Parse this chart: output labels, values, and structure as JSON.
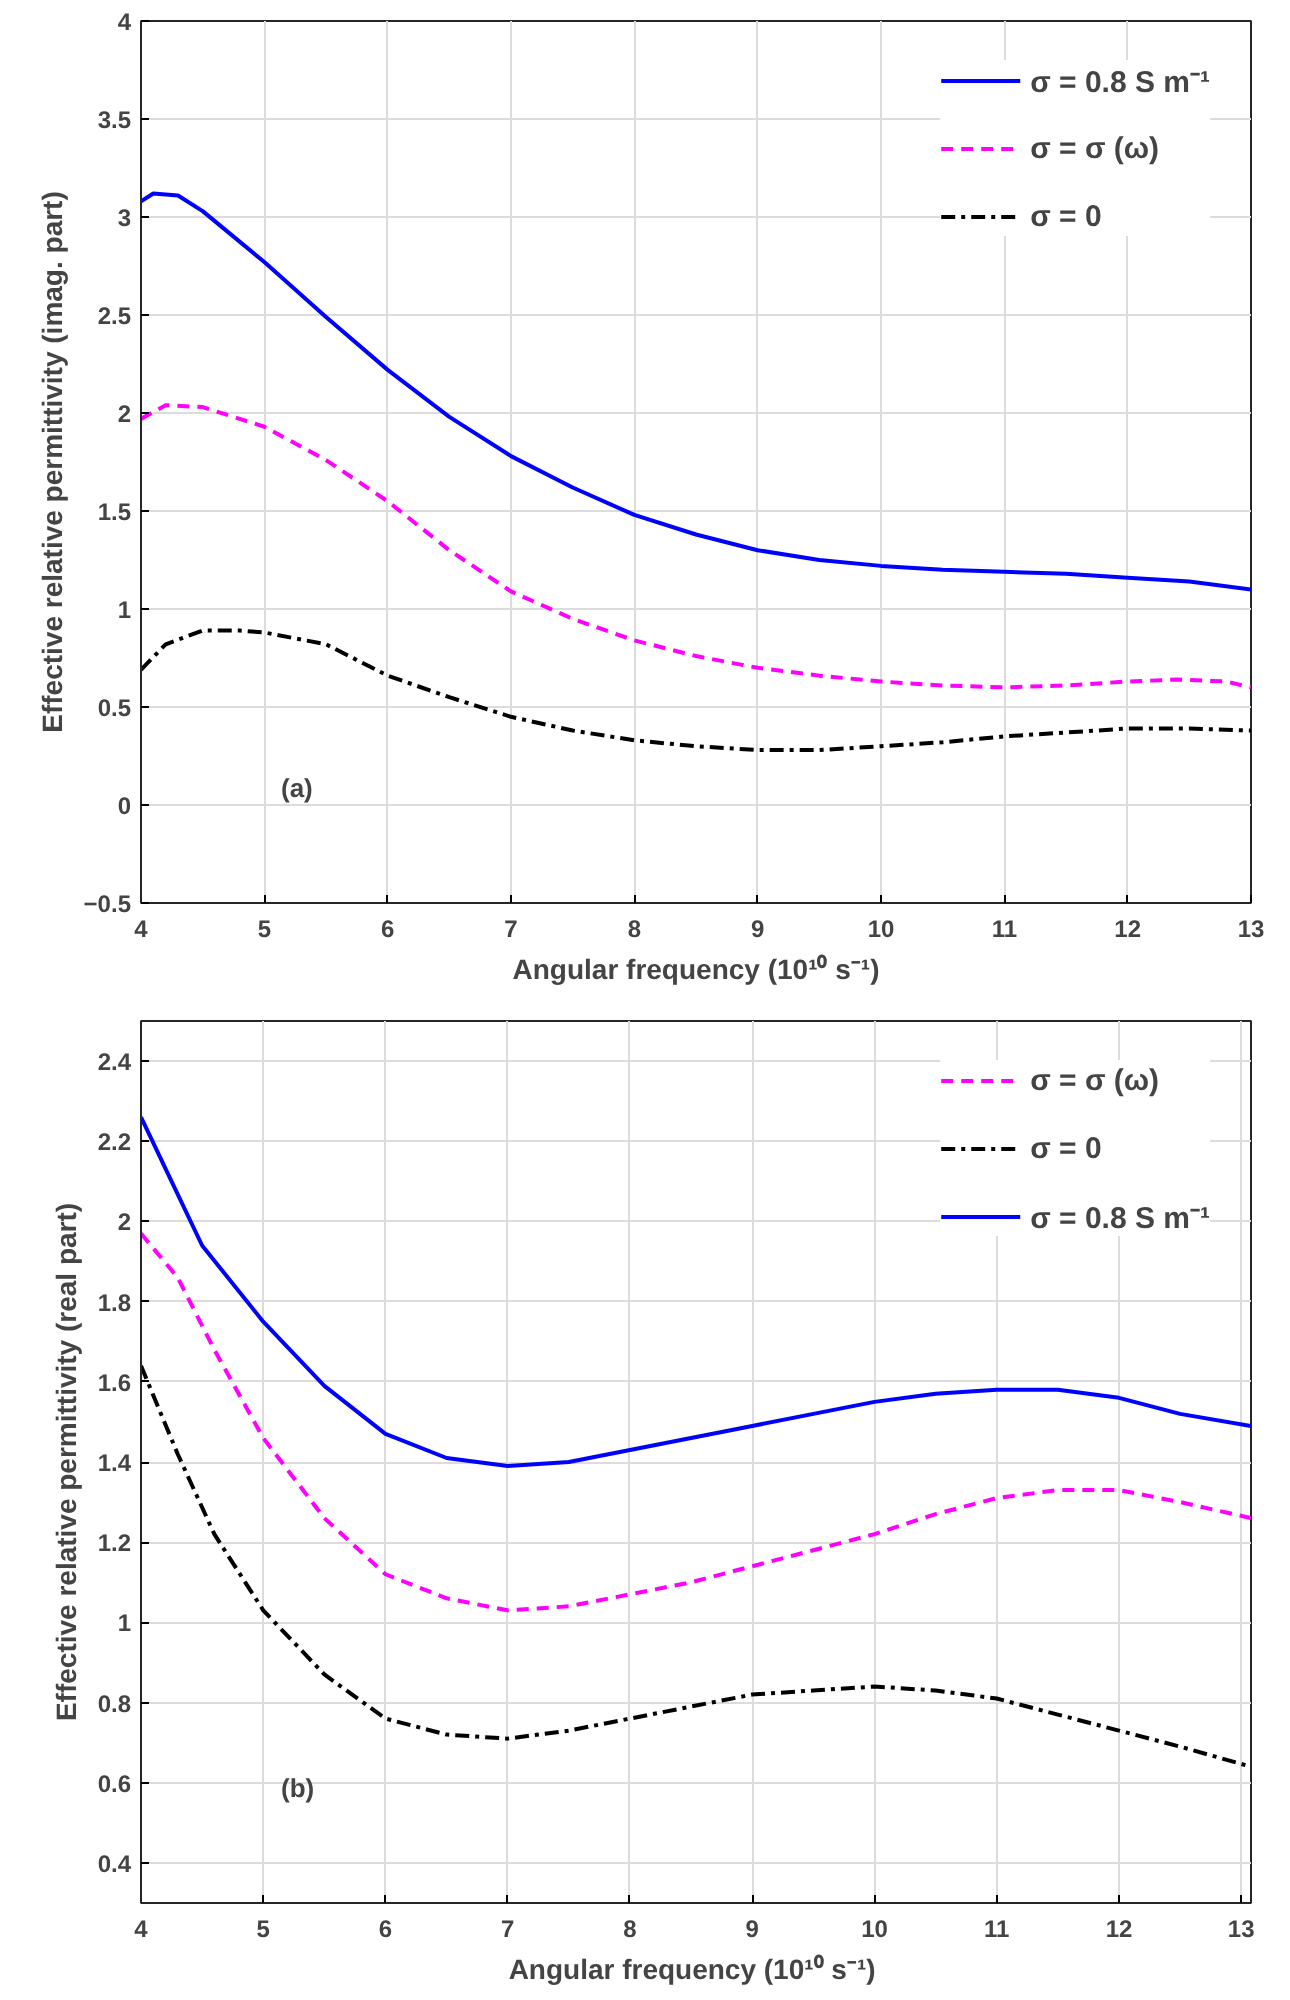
{
  "chart_data": [
    {
      "type": "line",
      "xlabel": "Angular frequency (10¹⁰ s⁻¹)",
      "ylabel": "Effective relative permittivity (imag. part)",
      "xlim": [
        4,
        13
      ],
      "xticks": [
        4,
        5,
        6,
        7,
        8,
        9,
        10,
        11,
        12,
        13
      ],
      "ylim": [
        -0.5,
        4
      ],
      "yticks": [
        -0.5,
        0,
        0.5,
        1,
        1.5,
        2,
        2.5,
        3,
        3.5,
        4
      ],
      "grid": true,
      "legend": "top right",
      "annotations": [
        "(a)"
      ],
      "series": [
        {
          "name": "σ = 0.8 S m⁻¹",
          "color": "#0000ff",
          "line_style": "solid",
          "x": [
            4,
            4.1,
            4.3,
            4.5,
            5,
            5.5,
            6,
            6.5,
            7,
            7.5,
            8,
            8.5,
            9,
            9.5,
            10,
            10.5,
            11,
            11.5,
            12,
            12.5,
            13
          ],
          "values": [
            3.08,
            3.12,
            3.11,
            3.03,
            2.77,
            2.49,
            2.22,
            1.98,
            1.78,
            1.62,
            1.48,
            1.38,
            1.3,
            1.25,
            1.22,
            1.2,
            1.19,
            1.18,
            1.16,
            1.14,
            1.1
          ]
        },
        {
          "name": "σ = σ (ω)",
          "color": "#ff00ff",
          "line_style": "dashed",
          "x": [
            4,
            4.2,
            4.5,
            5,
            5.5,
            6,
            6.5,
            7,
            7.5,
            8,
            8.5,
            9,
            9.5,
            10,
            10.5,
            11,
            11.5,
            12,
            12.4,
            12.8,
            13
          ],
          "values": [
            1.97,
            2.04,
            2.03,
            1.93,
            1.76,
            1.55,
            1.3,
            1.09,
            0.95,
            0.84,
            0.76,
            0.7,
            0.66,
            0.63,
            0.61,
            0.6,
            0.61,
            0.63,
            0.64,
            0.63,
            0.6
          ]
        },
        {
          "name": "σ = 0",
          "color": "#000000",
          "line_style": "dashdot",
          "x": [
            4,
            4.2,
            4.5,
            4.8,
            5,
            5.5,
            6,
            6.5,
            7,
            7.5,
            8,
            8.5,
            9,
            9.5,
            10,
            10.5,
            11,
            11.5,
            12,
            12.5,
            13
          ],
          "values": [
            0.69,
            0.82,
            0.89,
            0.89,
            0.88,
            0.82,
            0.66,
            0.55,
            0.45,
            0.38,
            0.33,
            0.3,
            0.28,
            0.28,
            0.3,
            0.32,
            0.35,
            0.37,
            0.39,
            0.39,
            0.38
          ]
        }
      ]
    },
    {
      "type": "line",
      "xlabel": "Angular frequency (10¹⁰  s⁻¹)",
      "ylabel": "Effective relative permittivity (real part)",
      "xlim": [
        4,
        13.08
      ],
      "xticks": [
        4,
        5,
        6,
        7,
        8,
        9,
        10,
        11,
        12,
        13
      ],
      "ylim": [
        0.3,
        2.5
      ],
      "yticks": [
        0.4,
        0.6,
        0.8,
        1,
        1.2,
        1.4,
        1.6,
        1.8,
        2,
        2.2,
        2.4
      ],
      "grid": true,
      "legend": "top right",
      "annotations": [
        "(b)"
      ],
      "series": [
        {
          "name": "σ = σ (ω)",
          "color": "#ff00ff",
          "line_style": "dashed",
          "x": [
            4,
            4.3,
            4.6,
            5,
            5.5,
            6,
            6.5,
            7,
            7.5,
            8,
            8.5,
            9,
            9.5,
            10,
            10.5,
            11,
            11.5,
            12,
            12.5,
            13.08
          ],
          "values": [
            1.97,
            1.86,
            1.68,
            1.46,
            1.26,
            1.12,
            1.06,
            1.03,
            1.04,
            1.07,
            1.1,
            1.14,
            1.18,
            1.22,
            1.27,
            1.31,
            1.33,
            1.33,
            1.3,
            1.26
          ]
        },
        {
          "name": "σ = 0",
          "color": "#000000",
          "line_style": "dashdot",
          "x": [
            4,
            4.3,
            4.6,
            5,
            5.5,
            6,
            6.5,
            7,
            7.5,
            8,
            8.5,
            9,
            9.5,
            10,
            10.5,
            11,
            11.5,
            12,
            12.5,
            13.08
          ],
          "values": [
            1.64,
            1.42,
            1.22,
            1.03,
            0.87,
            0.76,
            0.72,
            0.71,
            0.73,
            0.76,
            0.79,
            0.82,
            0.83,
            0.84,
            0.83,
            0.81,
            0.77,
            0.73,
            0.69,
            0.64
          ]
        },
        {
          "name": "σ = 0.8 S m⁻¹",
          "color": "#0000ff",
          "line_style": "solid",
          "x": [
            4,
            4.25,
            4.5,
            5,
            5.5,
            6,
            6.5,
            7,
            7.5,
            8,
            8.5,
            9,
            9.5,
            10,
            10.5,
            11,
            11.5,
            12,
            12.5,
            13.08
          ],
          "values": [
            2.26,
            2.1,
            1.94,
            1.75,
            1.59,
            1.47,
            1.41,
            1.39,
            1.4,
            1.43,
            1.46,
            1.49,
            1.52,
            1.55,
            1.57,
            1.58,
            1.58,
            1.56,
            1.52,
            1.49
          ]
        }
      ]
    }
  ]
}
